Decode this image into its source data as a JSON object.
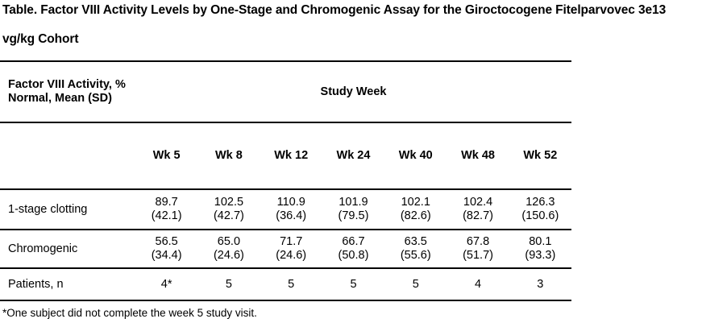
{
  "title": {
    "line1": "Table. Factor VIII Activity Levels by One-Stage and Chromogenic Assay for the Giroctocogene Fitelparvovec 3e13",
    "line2": "vg/kg Cohort"
  },
  "table": {
    "corner_header": {
      "line1": "Factor VIII Activity, %",
      "line2": "Normal, Mean (SD)"
    },
    "group_header": "Study Week",
    "week_headers": [
      "Wk 5",
      "Wk 8",
      "Wk 12",
      "Wk 24",
      "Wk 40",
      "Wk 48",
      "Wk 52"
    ],
    "rows": [
      {
        "label": "1-stage clotting",
        "means": [
          "89.7",
          "102.5",
          "110.9",
          "101.9",
          "102.1",
          "102.4",
          "126.3"
        ],
        "sds": [
          "(42.1)",
          "(42.7)",
          "(36.4)",
          "(79.5)",
          "(82.6)",
          "(82.7)",
          "(150.6)"
        ]
      },
      {
        "label": "Chromogenic",
        "means": [
          "56.5",
          "65.0",
          "71.7",
          "66.7",
          "63.5",
          "67.8",
          "80.1"
        ],
        "sds": [
          "(34.4)",
          "(24.6)",
          "(24.6)",
          "(50.8)",
          "(55.6)",
          "(51.7)",
          "(93.3)"
        ]
      },
      {
        "label": "Patients, n",
        "values": [
          "4*",
          "5",
          "5",
          "5",
          "5",
          "4",
          "3"
        ]
      }
    ]
  },
  "footnote": "*One subject did not complete the week 5 study visit.",
  "colors": {
    "text": "#000000",
    "background": "#ffffff",
    "rule": "#000000"
  }
}
